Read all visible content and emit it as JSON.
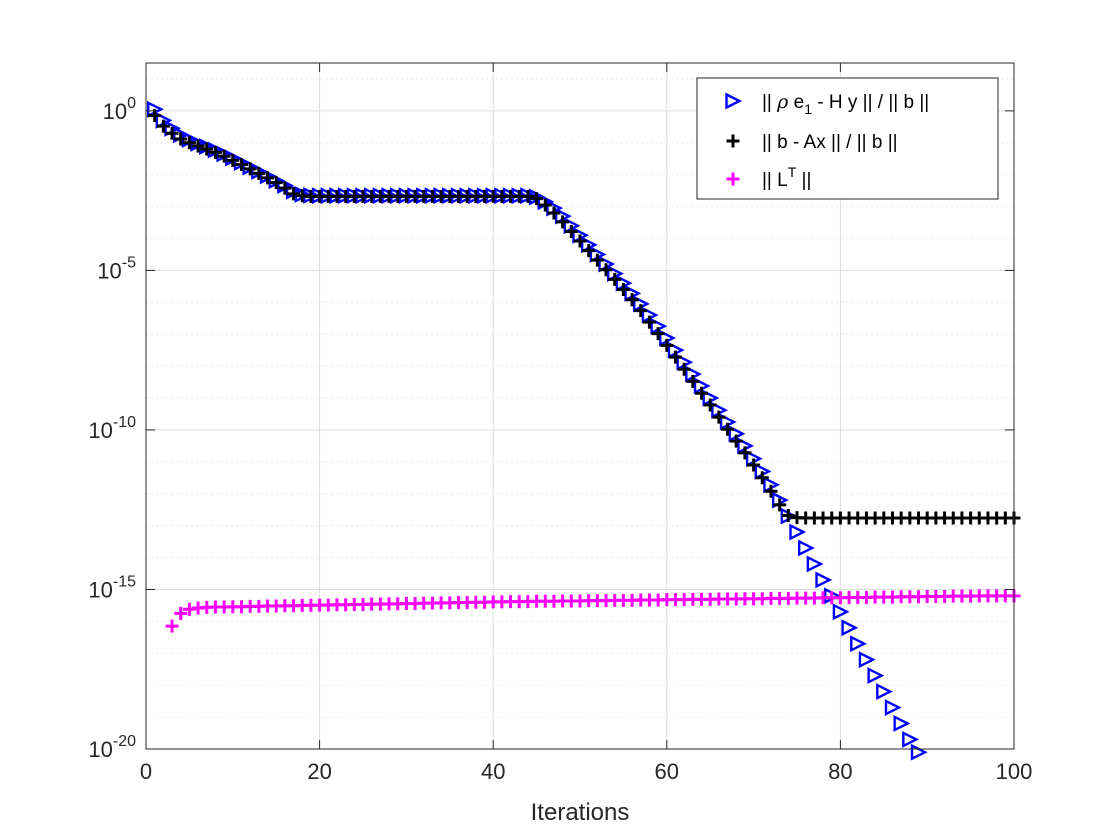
{
  "chart_data": {
    "type": "scatter",
    "title": "",
    "xlabel": "Iterations",
    "ylabel": "",
    "xlim": [
      0,
      100
    ],
    "ylim_log10": [
      -20,
      1.5
    ],
    "y_scale": "log",
    "grid": true,
    "minor_grid": true,
    "legend_position": "top-right",
    "x_ticks": [
      0,
      20,
      40,
      60,
      80,
      100
    ],
    "x_tick_labels": [
      "0",
      "20",
      "40",
      "60",
      "80",
      "100"
    ],
    "y_ticks_log10": [
      0,
      -5,
      -10,
      -15,
      -20
    ],
    "y_tick_labels": [
      {
        "base": "10",
        "exp": "0"
      },
      {
        "base": "10",
        "exp": "-5"
      },
      {
        "base": "10",
        "exp": "-10"
      },
      {
        "base": "10",
        "exp": "-15"
      },
      {
        "base": "10",
        "exp": "-20"
      }
    ],
    "series": [
      {
        "key": "est",
        "marker": "triangle-right",
        "color": "#0000ff",
        "legend": {
          "p1": "|| ",
          "rho": "ρ",
          "p2": " e",
          "sub": "1",
          "p3": " - H y || / || b ||"
        },
        "x_start": 1,
        "log10_y": [
          0.05,
          -0.3,
          -0.55,
          -0.75,
          -0.9,
          -1.02,
          -1.12,
          -1.23,
          -1.35,
          -1.48,
          -1.62,
          -1.76,
          -1.9,
          -2.04,
          -2.19,
          -2.34,
          -2.52,
          -2.62,
          -2.65,
          -2.66,
          -2.66,
          -2.66,
          -2.66,
          -2.66,
          -2.66,
          -2.66,
          -2.66,
          -2.66,
          -2.66,
          -2.66,
          -2.66,
          -2.66,
          -2.66,
          -2.66,
          -2.66,
          -2.66,
          -2.66,
          -2.66,
          -2.66,
          -2.66,
          -2.66,
          -2.66,
          -2.66,
          -2.66,
          -2.7,
          -2.85,
          -3.05,
          -3.3,
          -3.6,
          -3.9,
          -4.2,
          -4.5,
          -4.8,
          -5.1,
          -5.4,
          -5.72,
          -6.05,
          -6.4,
          -6.75,
          -7.12,
          -7.5,
          -7.88,
          -8.25,
          -8.62,
          -9.0,
          -9.38,
          -9.75,
          -10.12,
          -10.5,
          -10.9,
          -11.3,
          -11.72,
          -12.2,
          -12.7,
          -13.2,
          -13.7,
          -14.2,
          -14.7,
          -15.2,
          -15.7,
          -16.2,
          -16.7,
          -17.2,
          -17.7,
          -18.2,
          -18.7,
          -19.2,
          -19.7,
          -20.1,
          -20.45
        ]
      },
      {
        "key": "res",
        "marker": "plus",
        "color": "#000000",
        "legend": {
          "text": " || b - Ax || / || b ||"
        },
        "x_start": 1,
        "log10_y": [
          -0.15,
          -0.48,
          -0.7,
          -0.88,
          -1.0,
          -1.1,
          -1.2,
          -1.3,
          -1.42,
          -1.55,
          -1.68,
          -1.82,
          -1.96,
          -2.1,
          -2.25,
          -2.42,
          -2.6,
          -2.66,
          -2.68,
          -2.68,
          -2.68,
          -2.68,
          -2.68,
          -2.68,
          -2.68,
          -2.68,
          -2.68,
          -2.68,
          -2.68,
          -2.68,
          -2.68,
          -2.68,
          -2.68,
          -2.68,
          -2.68,
          -2.68,
          -2.68,
          -2.68,
          -2.68,
          -2.68,
          -2.68,
          -2.68,
          -2.68,
          -2.68,
          -2.75,
          -2.95,
          -3.2,
          -3.48,
          -3.78,
          -4.08,
          -4.38,
          -4.68,
          -4.98,
          -5.28,
          -5.6,
          -5.92,
          -6.26,
          -6.62,
          -6.98,
          -7.35,
          -7.72,
          -8.1,
          -8.48,
          -8.85,
          -9.22,
          -9.6,
          -9.98,
          -10.35,
          -10.72,
          -11.1,
          -11.5,
          -11.92,
          -12.35,
          -12.68,
          -12.75,
          -12.76,
          -12.76,
          -12.76,
          -12.76,
          -12.76,
          -12.76,
          -12.76,
          -12.76,
          -12.76,
          -12.76,
          -12.76,
          -12.76,
          -12.76,
          -12.76,
          -12.76,
          -12.76,
          -12.76,
          -12.76,
          -12.76,
          -12.76,
          -12.76,
          -12.76,
          -12.76,
          -12.76,
          -12.76
        ]
      },
      {
        "key": "lt",
        "marker": "plus",
        "color": "#ff00ff",
        "legend": {
          "p1": "|| L",
          "sup": "T",
          "p2": " ||"
        },
        "x_start": 3,
        "log10_y": [
          -16.15,
          -15.75,
          -15.62,
          -15.58,
          -15.56,
          -15.55,
          -15.55,
          -15.54,
          -15.54,
          -15.53,
          -15.53,
          -15.52,
          -15.52,
          -15.51,
          -15.51,
          -15.5,
          -15.5,
          -15.49,
          -15.49,
          -15.48,
          -15.48,
          -15.47,
          -15.47,
          -15.46,
          -15.46,
          -15.45,
          -15.45,
          -15.44,
          -15.44,
          -15.43,
          -15.43,
          -15.42,
          -15.42,
          -15.41,
          -15.41,
          -15.4,
          -15.4,
          -15.39,
          -15.39,
          -15.38,
          -15.38,
          -15.38,
          -15.37,
          -15.37,
          -15.37,
          -15.36,
          -15.36,
          -15.36,
          -15.35,
          -15.35,
          -15.35,
          -15.34,
          -15.34,
          -15.34,
          -15.33,
          -15.33,
          -15.33,
          -15.32,
          -15.32,
          -15.32,
          -15.31,
          -15.31,
          -15.31,
          -15.3,
          -15.3,
          -15.3,
          -15.29,
          -15.29,
          -15.29,
          -15.28,
          -15.28,
          -15.28,
          -15.27,
          -15.27,
          -15.27,
          -15.26,
          -15.26,
          -15.26,
          -15.25,
          -15.25,
          -15.25,
          -15.24,
          -15.24,
          -15.24,
          -15.23,
          -15.23,
          -15.23,
          -15.22,
          -15.22,
          -15.22,
          -15.21,
          -15.21,
          -15.21,
          -15.2,
          -15.2,
          -15.2,
          -15.2,
          -15.2
        ]
      }
    ]
  }
}
